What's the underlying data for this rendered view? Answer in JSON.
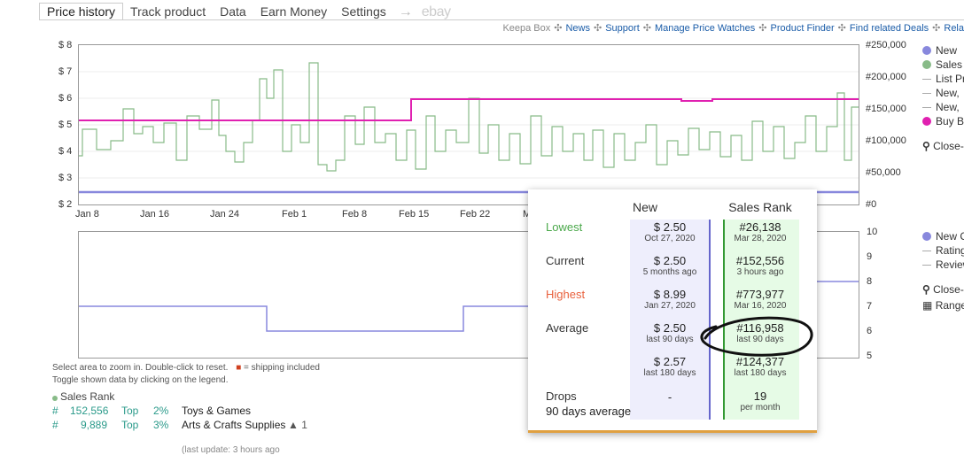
{
  "tabs": [
    {
      "label": "Price history",
      "active": true
    },
    {
      "label": "Track product"
    },
    {
      "label": "Data"
    },
    {
      "label": "Earn Money"
    },
    {
      "label": "Settings"
    }
  ],
  "tab_arrow": "→",
  "tab_ebay": "ebay",
  "links": [
    "Keepa Box",
    "News",
    "Support",
    "Manage Price Watches",
    "Product Finder",
    "Find related Deals",
    "Rela"
  ],
  "links_sep": "✣",
  "price_chart": {
    "y_left": [
      "$ 8",
      "$ 7",
      "$ 6",
      "$ 5",
      "$ 4",
      "$ 3",
      "$ 2"
    ],
    "y_right": [
      "#250,000",
      "#200,000",
      "#150,000",
      "#100,000",
      "#50,000",
      "#0"
    ],
    "x_labels": [
      "Jan 8",
      "Jan 16",
      "Jan 24",
      "Feb 1",
      "Feb 8",
      "Feb 15",
      "Feb 22",
      "M"
    ],
    "colors": {
      "new": "#8888dd",
      "sales": "#88bb88",
      "buybox": "#e020b0"
    }
  },
  "legend_top": [
    {
      "type": "dot",
      "color": "#8888dd",
      "label": "New"
    },
    {
      "type": "dot",
      "color": "#88bb88",
      "label": "Sales"
    },
    {
      "type": "dash",
      "label": "List Pr"
    },
    {
      "type": "dash",
      "label": "New,"
    },
    {
      "type": "dash",
      "label": "New,"
    },
    {
      "type": "dot",
      "color": "#e020b0",
      "label": "Buy Bo"
    }
  ],
  "close_top": "Close-",
  "rating_chart": {
    "y_right": [
      "10",
      "9",
      "8",
      "7",
      "6",
      "5"
    ]
  },
  "legend_bottom": [
    {
      "type": "dot",
      "color": "#8888dd",
      "label": "New C"
    },
    {
      "type": "dash",
      "label": "Rating"
    },
    {
      "type": "dash",
      "label": "Review"
    }
  ],
  "close_bottom": "Close-",
  "range": "Range",
  "hint1": "Select area to zoom in. Double-click to reset.",
  "hint_ship": "= shipping included",
  "hint2": "Toggle shown data by clicking on the legend.",
  "sales_rank": {
    "title": "Sales Rank",
    "rows": [
      {
        "hash": "#",
        "rank": "152,556",
        "top": "Top",
        "pct": "2%",
        "cat": "Toys & Games"
      },
      {
        "hash": "#",
        "rank": "9,889",
        "top": "Top",
        "pct": "3%",
        "cat": "Arts & Crafts Supplies",
        "extra": "1"
      }
    ]
  },
  "footer_partial": "(last update: 3 hours ago",
  "popup": {
    "col_new": "New",
    "col_rank": "Sales Rank",
    "rows": [
      {
        "label": "Lowest",
        "color": "#4aa84a",
        "new": "$ 2.50",
        "new_sub": "Oct 27, 2020",
        "rank": "#26,138",
        "rank_sub": "Mar 28, 2020"
      },
      {
        "label": "Current",
        "color": "#222",
        "new": "$ 2.50",
        "new_sub": "5 months ago",
        "rank": "#152,556",
        "rank_sub": "3 hours ago"
      },
      {
        "label": "Highest",
        "color": "#e8603c",
        "new": "$ 8.99",
        "new_sub": "Jan 27, 2020",
        "rank": "#773,977",
        "rank_sub": "Mar 16, 2020"
      },
      {
        "label": "Average",
        "color": "#222",
        "new": "$ 2.50",
        "new_sub": "last 90 days",
        "rank": "#116,958",
        "rank_sub": "last 90 days"
      },
      {
        "label": "",
        "color": "#222",
        "new": "$ 2.57",
        "new_sub": "last 180 days",
        "rank": "#124,377",
        "rank_sub": "last 180 days"
      }
    ],
    "drops_label": "Drops",
    "drops_sub": "90 days average",
    "drops_new": "-",
    "drops_rank": "19",
    "drops_rank_sub": "per month"
  }
}
